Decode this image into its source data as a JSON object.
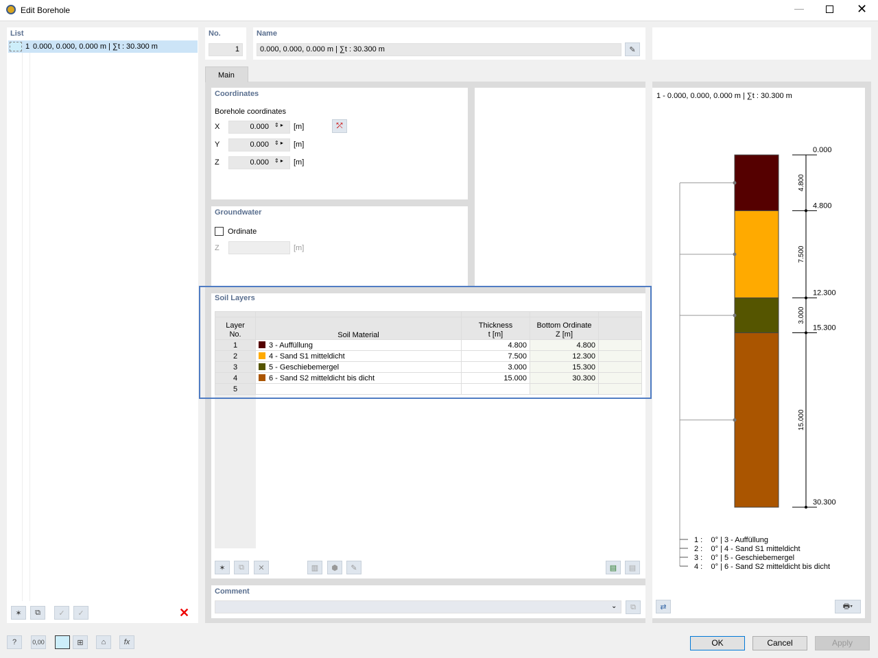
{
  "window": {
    "title": "Edit Borehole"
  },
  "list": {
    "header": "List",
    "items": [
      {
        "no": "1",
        "label": "0.000, 0.000, 0.000 m | ∑t : 30.300 m"
      }
    ]
  },
  "no": {
    "label": "No.",
    "value": "1"
  },
  "name": {
    "label": "Name",
    "value": "0.000, 0.000, 0.000 m | ∑t : 30.300 m"
  },
  "tabs": [
    {
      "label": "Main"
    }
  ],
  "coordinates": {
    "header": "Coordinates",
    "sub": "Borehole coordinates",
    "rows": [
      {
        "axis": "X",
        "value": "0.000",
        "unit": "[m]"
      },
      {
        "axis": "Y",
        "value": "0.000",
        "unit": "[m]"
      },
      {
        "axis": "Z",
        "value": "0.000",
        "unit": "[m]"
      }
    ]
  },
  "groundwater": {
    "header": "Groundwater",
    "checkbox": "Ordinate",
    "checked": false,
    "axis": "Z",
    "value": "",
    "unit": "[m]"
  },
  "soil_layers": {
    "header": "Soil Layers",
    "columns": [
      "Layer\nNo.",
      "Soil Material",
      "Thickness\nt [m]",
      "Bottom Ordinate\nZ [m]"
    ],
    "rows": [
      {
        "no": "1",
        "material": "3 - Auffüllung",
        "color": "#550000",
        "thickness": "4.800",
        "bottom": "4.800"
      },
      {
        "no": "2",
        "material": "4 - Sand S1 mitteldicht",
        "color": "#ffaa00",
        "thickness": "7.500",
        "bottom": "12.300"
      },
      {
        "no": "3",
        "material": "5 - Geschiebemergel",
        "color": "#555500",
        "thickness": "3.000",
        "bottom": "15.300"
      },
      {
        "no": "4",
        "material": "6 - Sand S2 mitteldicht bis dicht",
        "color": "#aa5500",
        "thickness": "15.000",
        "bottom": "30.300"
      },
      {
        "no": "5",
        "material": "",
        "color": "",
        "thickness": "",
        "bottom": ""
      }
    ]
  },
  "comment": {
    "label": "Comment",
    "value": ""
  },
  "preview": {
    "title": "1 - 0.000, 0.000, 0.000 m | ∑t : 30.300 m",
    "top": "0.000",
    "legend": [
      "1 :    0° | 3 - Auffüllung",
      "2 :    0° | 4 - Sand S1 mitteldicht",
      "3 :    0° | 5 - Geschiebemergel",
      "4 :    0° | 6 - Sand S2 mitteldicht bis dicht"
    ]
  },
  "buttons": {
    "ok": "OK",
    "cancel": "Cancel",
    "apply": "Apply"
  }
}
